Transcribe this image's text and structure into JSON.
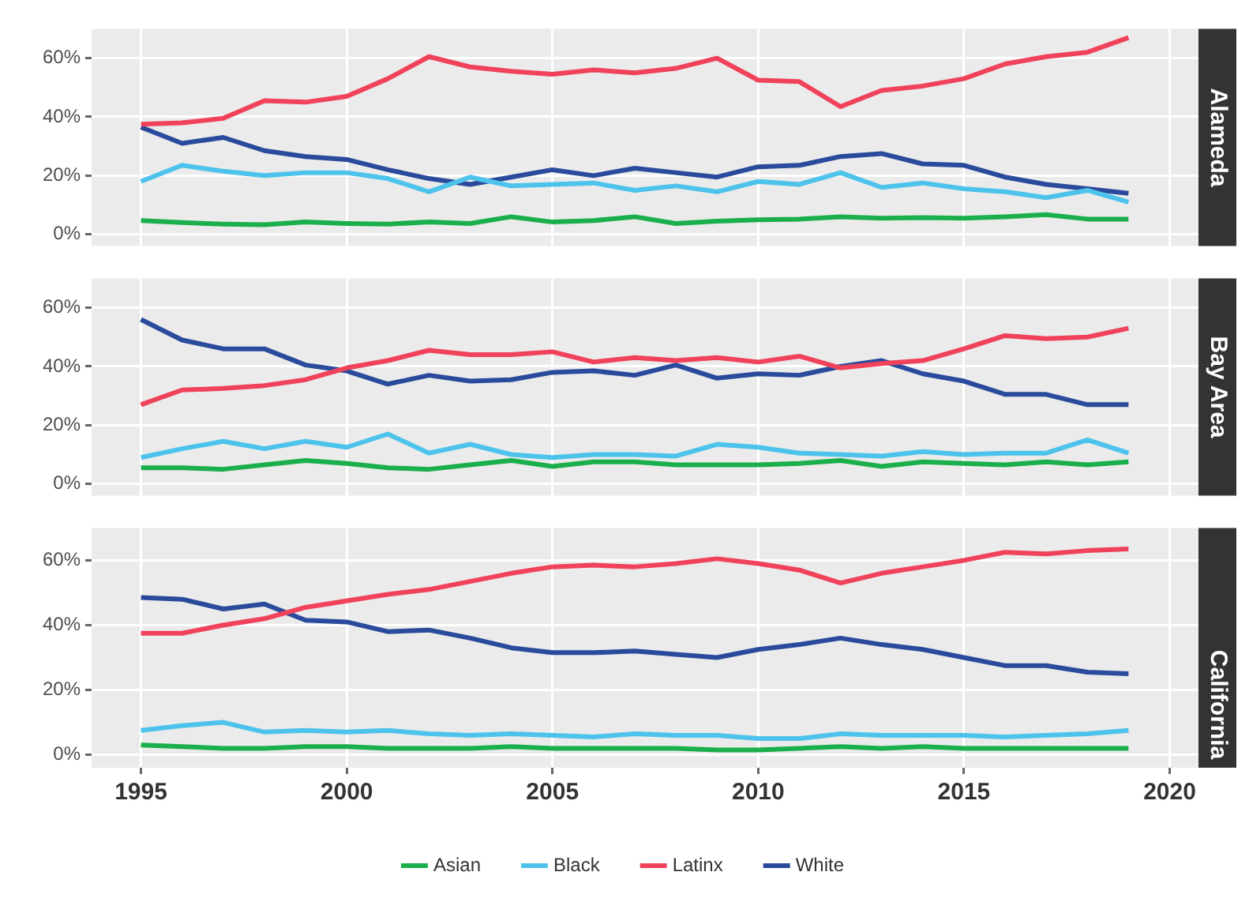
{
  "chart_data": [
    {
      "type": "line",
      "title": "Alameda",
      "x": [
        1995,
        1996,
        1997,
        1998,
        1999,
        2000,
        2001,
        2002,
        2003,
        2004,
        2005,
        2006,
        2007,
        2008,
        2009,
        2010,
        2011,
        2012,
        2013,
        2014,
        2015,
        2016,
        2017,
        2018,
        2019
      ],
      "xlim": [
        1993.8,
        2020.7
      ],
      "xticks": [
        1995,
        2000,
        2005,
        2010,
        2015,
        2020
      ],
      "ylim": [
        -4,
        70
      ],
      "yticks": [
        {
          "value": 0,
          "label": "0%"
        },
        {
          "value": 20,
          "label": "20%"
        },
        {
          "value": 40,
          "label": "40%"
        },
        {
          "value": 60,
          "label": "60%"
        }
      ],
      "grid": true,
      "tick_labels": "y",
      "series": [
        {
          "color": "#1aaf4b",
          "values": [
            4.7,
            4,
            3.5,
            3.3,
            4.2,
            3.7,
            3.5,
            4.2,
            3.7,
            6,
            4.2,
            4.7,
            6,
            3.7,
            4.5,
            5,
            5.2,
            6,
            5.5,
            5.7,
            5.5,
            6,
            6.7,
            5.2,
            5.2
          ]
        },
        {
          "color": "#4dc3ec",
          "values": [
            18,
            23.5,
            21.5,
            20,
            21,
            21,
            19,
            14.5,
            19.5,
            16.5,
            17,
            17.5,
            15,
            16.5,
            14.5,
            18,
            17,
            21,
            16,
            17.5,
            15.5,
            14.5,
            12.5,
            15,
            11
          ]
        },
        {
          "color": "#f0425a",
          "values": [
            37.5,
            38,
            39.5,
            45.5,
            45,
            47,
            53,
            60.5,
            57,
            55.5,
            54.5,
            56,
            55,
            56.5,
            60,
            52.5,
            52,
            43.5,
            49,
            50.5,
            53,
            58,
            60.5,
            62,
            67
          ]
        },
        {
          "color": "#2a4a9c",
          "values": [
            36.5,
            31,
            33,
            28.5,
            26.5,
            25.5,
            22,
            19,
            17,
            19.5,
            22,
            20,
            22.5,
            21,
            19.5,
            23,
            23.5,
            26.5,
            27.5,
            24,
            23.5,
            19.5,
            17,
            15.5,
            14
          ]
        }
      ]
    },
    {
      "type": "line",
      "title": "Bay Area",
      "x": [
        1995,
        1996,
        1997,
        1998,
        1999,
        2000,
        2001,
        2002,
        2003,
        2004,
        2005,
        2006,
        2007,
        2008,
        2009,
        2010,
        2011,
        2012,
        2013,
        2014,
        2015,
        2016,
        2017,
        2018,
        2019
      ],
      "xlim": [
        1993.8,
        2020.7
      ],
      "xticks": [
        1995,
        2000,
        2005,
        2010,
        2015,
        2020
      ],
      "ylim": [
        -4,
        70
      ],
      "yticks": [
        {
          "value": 0,
          "label": "0%"
        },
        {
          "value": 20,
          "label": "20%"
        },
        {
          "value": 40,
          "label": "40%"
        },
        {
          "value": 60,
          "label": "60%"
        }
      ],
      "grid": true,
      "tick_labels": "y",
      "series": [
        {
          "color": "#1aaf4b",
          "values": [
            5.5,
            5.5,
            5,
            6.5,
            8,
            7,
            5.5,
            5,
            6.5,
            8,
            6,
            7.5,
            7.5,
            6.5,
            6.5,
            6.5,
            7,
            8,
            6,
            7.5,
            7,
            6.5,
            7.5,
            6.5,
            7.5
          ]
        },
        {
          "color": "#4dc3ec",
          "values": [
            9,
            12,
            14.5,
            12,
            14.5,
            12.5,
            17,
            10.5,
            13.5,
            10,
            9,
            10,
            10,
            9.5,
            13.5,
            12.5,
            10.5,
            10,
            9.5,
            11,
            10,
            10.5,
            10.5,
            15,
            10.5
          ]
        },
        {
          "color": "#f0425a",
          "values": [
            27,
            32,
            32.5,
            33.5,
            35.5,
            39.5,
            42,
            45.5,
            44,
            44,
            45,
            41.5,
            43,
            42,
            43,
            41.5,
            43.5,
            39.5,
            41,
            42,
            46,
            50.5,
            49.5,
            50,
            53
          ]
        },
        {
          "color": "#2a4a9c",
          "values": [
            56,
            49,
            46,
            46,
            40.5,
            38.5,
            34,
            37,
            35,
            35.5,
            38,
            38.5,
            37,
            40.5,
            36,
            37.5,
            37,
            40,
            42,
            37.5,
            35,
            30.5,
            30.5,
            27,
            27
          ]
        }
      ]
    },
    {
      "type": "line",
      "title": "California",
      "x": [
        1995,
        1996,
        1997,
        1998,
        1999,
        2000,
        2001,
        2002,
        2003,
        2004,
        2005,
        2006,
        2007,
        2008,
        2009,
        2010,
        2011,
        2012,
        2013,
        2014,
        2015,
        2016,
        2017,
        2018,
        2019
      ],
      "xlim": [
        1993.8,
        2020.7
      ],
      "xticks": [
        1995,
        2000,
        2005,
        2010,
        2015,
        2020
      ],
      "ylim": [
        -4,
        70
      ],
      "yticks": [
        {
          "value": 0,
          "label": "0%"
        },
        {
          "value": 20,
          "label": "20%"
        },
        {
          "value": 40,
          "label": "40%"
        },
        {
          "value": 60,
          "label": "60%"
        }
      ],
      "grid": true,
      "legend": "bottom",
      "series": [
        {
          "name": "Asian",
          "color": "#1aaf4b",
          "values": [
            3,
            2.5,
            2,
            2,
            2.5,
            2.5,
            2,
            2,
            2,
            2.5,
            2,
            2,
            2,
            2,
            1.5,
            1.5,
            2,
            2.5,
            2,
            2.5,
            2,
            2,
            2,
            2,
            2
          ]
        },
        {
          "name": "Black",
          "color": "#4dc3ec",
          "values": [
            7.5,
            9,
            10,
            7,
            7.5,
            7,
            7.5,
            6.5,
            6,
            6.5,
            6,
            5.5,
            6.5,
            6,
            6,
            5,
            5,
            6.5,
            6,
            6,
            6,
            5.5,
            6,
            6.5,
            7.5
          ]
        },
        {
          "name": "Latinx",
          "color": "#f0425a",
          "values": [
            37.5,
            37.5,
            40,
            42,
            45.5,
            47.5,
            49.5,
            51,
            53.5,
            56,
            58,
            58.5,
            58,
            59,
            60.5,
            59,
            57,
            53,
            56,
            58,
            60,
            62.5,
            62,
            63,
            63.5
          ]
        },
        {
          "name": "White",
          "color": "#2a4a9c",
          "values": [
            48.5,
            48,
            45,
            46.5,
            41.5,
            41,
            38,
            38.5,
            36,
            33,
            31.5,
            31.5,
            32,
            31,
            30,
            32.5,
            34,
            36,
            34,
            32.5,
            30,
            27.5,
            27.5,
            25.5,
            25
          ]
        }
      ]
    }
  ]
}
